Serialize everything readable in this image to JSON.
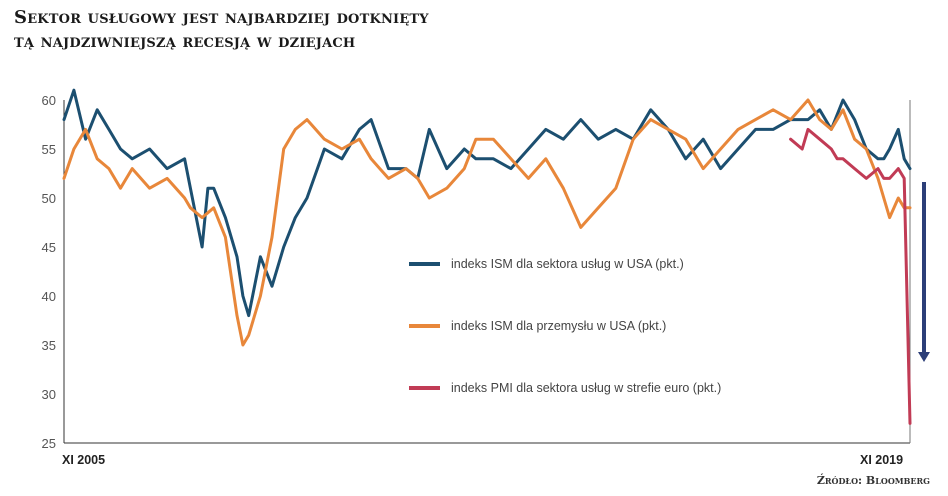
{
  "title_lines": [
    "Sektor usługowy jest najbardziej dotknięty",
    "tą najdziwniejszą recesją w dziejach"
  ],
  "source": "Źródło: Bloomberg",
  "chart_data": {
    "type": "line",
    "title": "Sektor usługowy jest najbardziej dotknięty tą najdziwniejszą recesją w dziejach",
    "x_start_label": "XI 2005",
    "x_end_label": "XI 2019",
    "ylim": [
      25,
      60
    ],
    "yticks": [
      25,
      30,
      35,
      40,
      45,
      50,
      55,
      60
    ],
    "grid": false,
    "legend_position": "center-right",
    "series": [
      {
        "name": "indeks ISM dla sektora usług w USA (pkt.)",
        "color": "#1c4f70",
        "x": [
          2005.83,
          2006.0,
          2006.2,
          2006.4,
          2006.6,
          2006.8,
          2007.0,
          2007.3,
          2007.6,
          2007.9,
          2008.0,
          2008.2,
          2008.3,
          2008.4,
          2008.6,
          2008.8,
          2008.9,
          2009.0,
          2009.2,
          2009.4,
          2009.6,
          2009.8,
          2010.0,
          2010.3,
          2010.6,
          2010.9,
          2011.1,
          2011.4,
          2011.7,
          2011.9,
          2012.1,
          2012.4,
          2012.7,
          2012.9,
          2013.2,
          2013.5,
          2013.8,
          2014.1,
          2014.4,
          2014.7,
          2015.0,
          2015.3,
          2015.6,
          2015.9,
          2016.2,
          2016.5,
          2016.8,
          2017.1,
          2017.4,
          2017.7,
          2018.0,
          2018.3,
          2018.6,
          2018.8,
          2019.0,
          2019.2,
          2019.4,
          2019.6,
          2019.8,
          2019.9,
          2020.0,
          2020.15,
          2020.25,
          2020.35
        ],
        "values": [
          58,
          61,
          56,
          59,
          57,
          55,
          54,
          55,
          53,
          54,
          51,
          45,
          51,
          51,
          48,
          44,
          40,
          38,
          44,
          41,
          45,
          48,
          50,
          55,
          54,
          57,
          58,
          53,
          53,
          52,
          57,
          53,
          55,
          54,
          54,
          53,
          55,
          57,
          56,
          58,
          56,
          57,
          56,
          59,
          57,
          54,
          56,
          53,
          55,
          57,
          57,
          58,
          58,
          59,
          57,
          60,
          58,
          55,
          54,
          54,
          55,
          57,
          54,
          53
        ]
      },
      {
        "name": "indeks ISM dla przemysłu w USA (pkt.)",
        "color": "#e8873a",
        "x": [
          2005.83,
          2006.0,
          2006.2,
          2006.4,
          2006.6,
          2006.8,
          2007.0,
          2007.3,
          2007.6,
          2007.9,
          2008.0,
          2008.2,
          2008.4,
          2008.6,
          2008.8,
          2008.9,
          2009.0,
          2009.2,
          2009.4,
          2009.6,
          2009.8,
          2010.0,
          2010.3,
          2010.6,
          2010.9,
          2011.1,
          2011.4,
          2011.7,
          2011.9,
          2012.1,
          2012.4,
          2012.7,
          2012.9,
          2013.2,
          2013.5,
          2013.8,
          2014.1,
          2014.4,
          2014.7,
          2015.0,
          2015.3,
          2015.6,
          2015.9,
          2016.2,
          2016.5,
          2016.8,
          2017.1,
          2017.4,
          2017.7,
          2018.0,
          2018.3,
          2018.6,
          2018.8,
          2019.0,
          2019.2,
          2019.4,
          2019.6,
          2019.8,
          2019.9,
          2020.0,
          2020.15,
          2020.25,
          2020.35
        ],
        "values": [
          52,
          55,
          57,
          54,
          53,
          51,
          53,
          51,
          52,
          50,
          49,
          48,
          49,
          46,
          38,
          35,
          36,
          40,
          46,
          55,
          57,
          58,
          56,
          55,
          56,
          54,
          52,
          53,
          52,
          50,
          51,
          53,
          56,
          56,
          54,
          52,
          54,
          51,
          47,
          49,
          51,
          56,
          58,
          57,
          56,
          53,
          55,
          57,
          58,
          59,
          58,
          60,
          58,
          57,
          59,
          56,
          55,
          52,
          50,
          48,
          50,
          49,
          49
        ]
      },
      {
        "name": "indeks PMI dla sektora usług w strefie euro (pkt.)",
        "color": "#c13b55",
        "x": [
          2018.3,
          2018.5,
          2018.6,
          2018.8,
          2019.0,
          2019.1,
          2019.2,
          2019.4,
          2019.6,
          2019.8,
          2019.9,
          2020.0,
          2020.15,
          2020.25,
          2020.35
        ],
        "values": [
          56,
          55,
          57,
          56,
          55,
          54,
          54,
          53,
          52,
          53,
          52,
          52,
          53,
          52,
          27
        ]
      }
    ]
  }
}
